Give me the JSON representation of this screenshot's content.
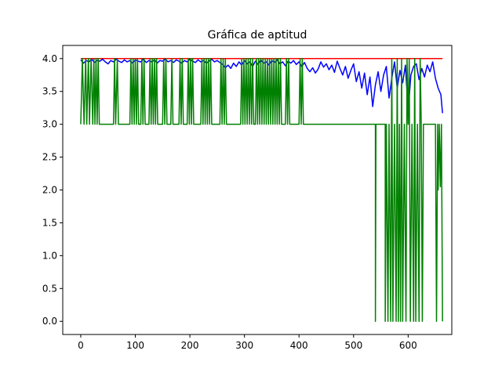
{
  "chart_data": {
    "type": "line",
    "title": "Gráfica de aptitud",
    "xlabel": "",
    "ylabel": "",
    "xlim": [
      -33,
      680
    ],
    "ylim": [
      -0.2,
      4.2
    ],
    "x_ticks": [
      0,
      100,
      200,
      300,
      400,
      500,
      600
    ],
    "y_ticks": [
      0.0,
      0.5,
      1.0,
      1.5,
      2.0,
      2.5,
      3.0,
      3.5,
      4.0
    ],
    "y_tick_labels": [
      "0.0",
      "0.5",
      "1.0",
      "1.5",
      "2.0",
      "2.5",
      "3.0",
      "3.5",
      "4.0"
    ],
    "grid": false,
    "legend": "none",
    "series": [
      {
        "color": "#ff0000",
        "points": [
          [
            0,
            4.0
          ],
          [
            663,
            4.0
          ]
        ]
      },
      {
        "color": "#0000ff",
        "points": [
          [
            0,
            3.98
          ],
          [
            5,
            3.93
          ],
          [
            10,
            3.97
          ],
          [
            15,
            3.95
          ],
          [
            20,
            3.99
          ],
          [
            25,
            3.94
          ],
          [
            30,
            3.97
          ],
          [
            35,
            3.96
          ],
          [
            40,
            3.99
          ],
          [
            45,
            3.95
          ],
          [
            50,
            3.92
          ],
          [
            55,
            3.97
          ],
          [
            60,
            3.95
          ],
          [
            65,
            3.99
          ],
          [
            70,
            3.96
          ],
          [
            75,
            3.94
          ],
          [
            80,
            3.98
          ],
          [
            85,
            3.95
          ],
          [
            90,
            3.97
          ],
          [
            95,
            3.93
          ],
          [
            100,
            3.98
          ],
          [
            105,
            3.96
          ],
          [
            110,
            3.95
          ],
          [
            115,
            3.99
          ],
          [
            120,
            3.94
          ],
          [
            125,
            3.97
          ],
          [
            130,
            3.95
          ],
          [
            135,
            3.98
          ],
          [
            140,
            3.93
          ],
          [
            145,
            3.97
          ],
          [
            150,
            3.96
          ],
          [
            155,
            3.99
          ],
          [
            160,
            3.95
          ],
          [
            165,
            3.97
          ],
          [
            170,
            3.94
          ],
          [
            175,
            3.98
          ],
          [
            180,
            3.96
          ],
          [
            185,
            3.93
          ],
          [
            190,
            3.97
          ],
          [
            195,
            3.95
          ],
          [
            200,
            3.99
          ],
          [
            205,
            3.96
          ],
          [
            210,
            3.94
          ],
          [
            215,
            3.98
          ],
          [
            220,
            3.95
          ],
          [
            225,
            3.97
          ],
          [
            230,
            3.93
          ],
          [
            235,
            3.96
          ],
          [
            240,
            3.99
          ],
          [
            245,
            3.95
          ],
          [
            250,
            3.97
          ],
          [
            255,
            3.94
          ],
          [
            260,
            3.91
          ],
          [
            265,
            3.86
          ],
          [
            270,
            3.9
          ],
          [
            275,
            3.85
          ],
          [
            280,
            3.93
          ],
          [
            285,
            3.88
          ],
          [
            290,
            3.95
          ],
          [
            295,
            3.9
          ],
          [
            300,
            3.97
          ],
          [
            305,
            3.92
          ],
          [
            310,
            3.95
          ],
          [
            315,
            3.88
          ],
          [
            320,
            3.96
          ],
          [
            325,
            3.91
          ],
          [
            330,
            3.98
          ],
          [
            335,
            3.93
          ],
          [
            340,
            3.95
          ],
          [
            345,
            3.9
          ],
          [
            350,
            3.97
          ],
          [
            355,
            3.94
          ],
          [
            360,
            3.98
          ],
          [
            365,
            3.92
          ],
          [
            370,
            3.95
          ],
          [
            375,
            3.89
          ],
          [
            380,
            3.96
          ],
          [
            385,
            3.93
          ],
          [
            390,
            3.97
          ],
          [
            395,
            3.91
          ],
          [
            400,
            3.95
          ],
          [
            405,
            3.88
          ],
          [
            410,
            3.94
          ],
          [
            415,
            3.85
          ],
          [
            420,
            3.8
          ],
          [
            425,
            3.86
          ],
          [
            430,
            3.78
          ],
          [
            435,
            3.84
          ],
          [
            440,
            3.95
          ],
          [
            445,
            3.87
          ],
          [
            450,
            3.92
          ],
          [
            455,
            3.83
          ],
          [
            460,
            3.9
          ],
          [
            465,
            3.79
          ],
          [
            470,
            3.96
          ],
          [
            475,
            3.85
          ],
          [
            480,
            3.75
          ],
          [
            485,
            3.88
          ],
          [
            490,
            3.7
          ],
          [
            495,
            3.82
          ],
          [
            500,
            3.92
          ],
          [
            505,
            3.65
          ],
          [
            510,
            3.8
          ],
          [
            515,
            3.55
          ],
          [
            520,
            3.78
          ],
          [
            525,
            3.45
          ],
          [
            530,
            3.72
          ],
          [
            535,
            3.27
          ],
          [
            540,
            3.6
          ],
          [
            545,
            3.8
          ],
          [
            550,
            3.5
          ],
          [
            555,
            3.75
          ],
          [
            560,
            3.88
          ],
          [
            565,
            3.4
          ],
          [
            570,
            3.7
          ],
          [
            575,
            3.95
          ],
          [
            580,
            3.55
          ],
          [
            585,
            3.82
          ],
          [
            590,
            3.63
          ],
          [
            595,
            3.9
          ],
          [
            600,
            3.2
          ],
          [
            605,
            3.75
          ],
          [
            610,
            3.88
          ],
          [
            615,
            3.92
          ],
          [
            620,
            3.68
          ],
          [
            625,
            3.85
          ],
          [
            630,
            3.72
          ],
          [
            635,
            3.9
          ],
          [
            640,
            3.8
          ],
          [
            645,
            3.95
          ],
          [
            650,
            3.7
          ],
          [
            655,
            3.55
          ],
          [
            660,
            3.45
          ],
          [
            663,
            3.17
          ]
        ]
      },
      {
        "color": "#008000",
        "points": [
          [
            0,
            3
          ],
          [
            3,
            4
          ],
          [
            6,
            3
          ],
          [
            9,
            4
          ],
          [
            11,
            3
          ],
          [
            14,
            4
          ],
          [
            16,
            3
          ],
          [
            19,
            4
          ],
          [
            22,
            3
          ],
          [
            24,
            4
          ],
          [
            26,
            3
          ],
          [
            28,
            4
          ],
          [
            30,
            3
          ],
          [
            32,
            4
          ],
          [
            34,
            3
          ],
          [
            60,
            3
          ],
          [
            62,
            4
          ],
          [
            64,
            3
          ],
          [
            67,
            4
          ],
          [
            69,
            3
          ],
          [
            90,
            3
          ],
          [
            92,
            4
          ],
          [
            94,
            3
          ],
          [
            96,
            4
          ],
          [
            98,
            3
          ],
          [
            100,
            4
          ],
          [
            102,
            3
          ],
          [
            104,
            4
          ],
          [
            106,
            3
          ],
          [
            110,
            3
          ],
          [
            112,
            4
          ],
          [
            114,
            3
          ],
          [
            116,
            4
          ],
          [
            118,
            3
          ],
          [
            125,
            3
          ],
          [
            127,
            4
          ],
          [
            129,
            3
          ],
          [
            131,
            4
          ],
          [
            133,
            3
          ],
          [
            135,
            4
          ],
          [
            137,
            3
          ],
          [
            139,
            4
          ],
          [
            141,
            3
          ],
          [
            150,
            3
          ],
          [
            152,
            4
          ],
          [
            154,
            3
          ],
          [
            156,
            4
          ],
          [
            158,
            3
          ],
          [
            165,
            3
          ],
          [
            167,
            4
          ],
          [
            169,
            3
          ],
          [
            180,
            3
          ],
          [
            182,
            4
          ],
          [
            184,
            3
          ],
          [
            186,
            4
          ],
          [
            188,
            3
          ],
          [
            195,
            3
          ],
          [
            197,
            4
          ],
          [
            199,
            3
          ],
          [
            201,
            4
          ],
          [
            203,
            3
          ],
          [
            205,
            4
          ],
          [
            207,
            3
          ],
          [
            220,
            3
          ],
          [
            222,
            4
          ],
          [
            224,
            3
          ],
          [
            226,
            4
          ],
          [
            228,
            3
          ],
          [
            230,
            4
          ],
          [
            232,
            3
          ],
          [
            234,
            4
          ],
          [
            236,
            3
          ],
          [
            238,
            4
          ],
          [
            240,
            3
          ],
          [
            255,
            3
          ],
          [
            257,
            4
          ],
          [
            259,
            3
          ],
          [
            261,
            4
          ],
          [
            263,
            3
          ],
          [
            265,
            4
          ],
          [
            267,
            3
          ],
          [
            293,
            3
          ],
          [
            295,
            4
          ],
          [
            297,
            3
          ],
          [
            299,
            4
          ],
          [
            301,
            3
          ],
          [
            303,
            4
          ],
          [
            305,
            3
          ],
          [
            307,
            4
          ],
          [
            309,
            3
          ],
          [
            311,
            4
          ],
          [
            313,
            3
          ],
          [
            315,
            4
          ],
          [
            317,
            3
          ],
          [
            320,
            3
          ],
          [
            322,
            4
          ],
          [
            324,
            3
          ],
          [
            326,
            4
          ],
          [
            328,
            3
          ],
          [
            330,
            4
          ],
          [
            332,
            3
          ],
          [
            334,
            4
          ],
          [
            336,
            3
          ],
          [
            338,
            4
          ],
          [
            340,
            3
          ],
          [
            342,
            4
          ],
          [
            344,
            3
          ],
          [
            346,
            4
          ],
          [
            348,
            3
          ],
          [
            350,
            4
          ],
          [
            352,
            3
          ],
          [
            354,
            4
          ],
          [
            356,
            3
          ],
          [
            358,
            4
          ],
          [
            360,
            3
          ],
          [
            362,
            4
          ],
          [
            364,
            3
          ],
          [
            366,
            4
          ],
          [
            368,
            3
          ],
          [
            375,
            3
          ],
          [
            377,
            4
          ],
          [
            379,
            3
          ],
          [
            381,
            4
          ],
          [
            383,
            3
          ],
          [
            400,
            3
          ],
          [
            402,
            4
          ],
          [
            404,
            3
          ],
          [
            406,
            4
          ],
          [
            408,
            3
          ],
          [
            540,
            3
          ],
          [
            540,
            0
          ],
          [
            541,
            3
          ],
          [
            558,
            3
          ],
          [
            558,
            0
          ],
          [
            560,
            3
          ],
          [
            563,
            0
          ],
          [
            565,
            3
          ],
          [
            568,
            0
          ],
          [
            570,
            4
          ],
          [
            572,
            0
          ],
          [
            575,
            3
          ],
          [
            578,
            0
          ],
          [
            580,
            4
          ],
          [
            582,
            0
          ],
          [
            584,
            3
          ],
          [
            586,
            0
          ],
          [
            588,
            4
          ],
          [
            590,
            0
          ],
          [
            593,
            3
          ],
          [
            596,
            0
          ],
          [
            598,
            4
          ],
          [
            600,
            3
          ],
          [
            602,
            4
          ],
          [
            604,
            0
          ],
          [
            607,
            3
          ],
          [
            610,
            0
          ],
          [
            612,
            4
          ],
          [
            614,
            0
          ],
          [
            617,
            3
          ],
          [
            620,
            0
          ],
          [
            622,
            4
          ],
          [
            624,
            3
          ],
          [
            626,
            0
          ],
          [
            628,
            3
          ],
          [
            650,
            3
          ],
          [
            652,
            0
          ],
          [
            654,
            3
          ],
          [
            655,
            2.0
          ],
          [
            657,
            3
          ],
          [
            659,
            2.05
          ],
          [
            661,
            3
          ],
          [
            663,
            0
          ]
        ]
      }
    ]
  }
}
